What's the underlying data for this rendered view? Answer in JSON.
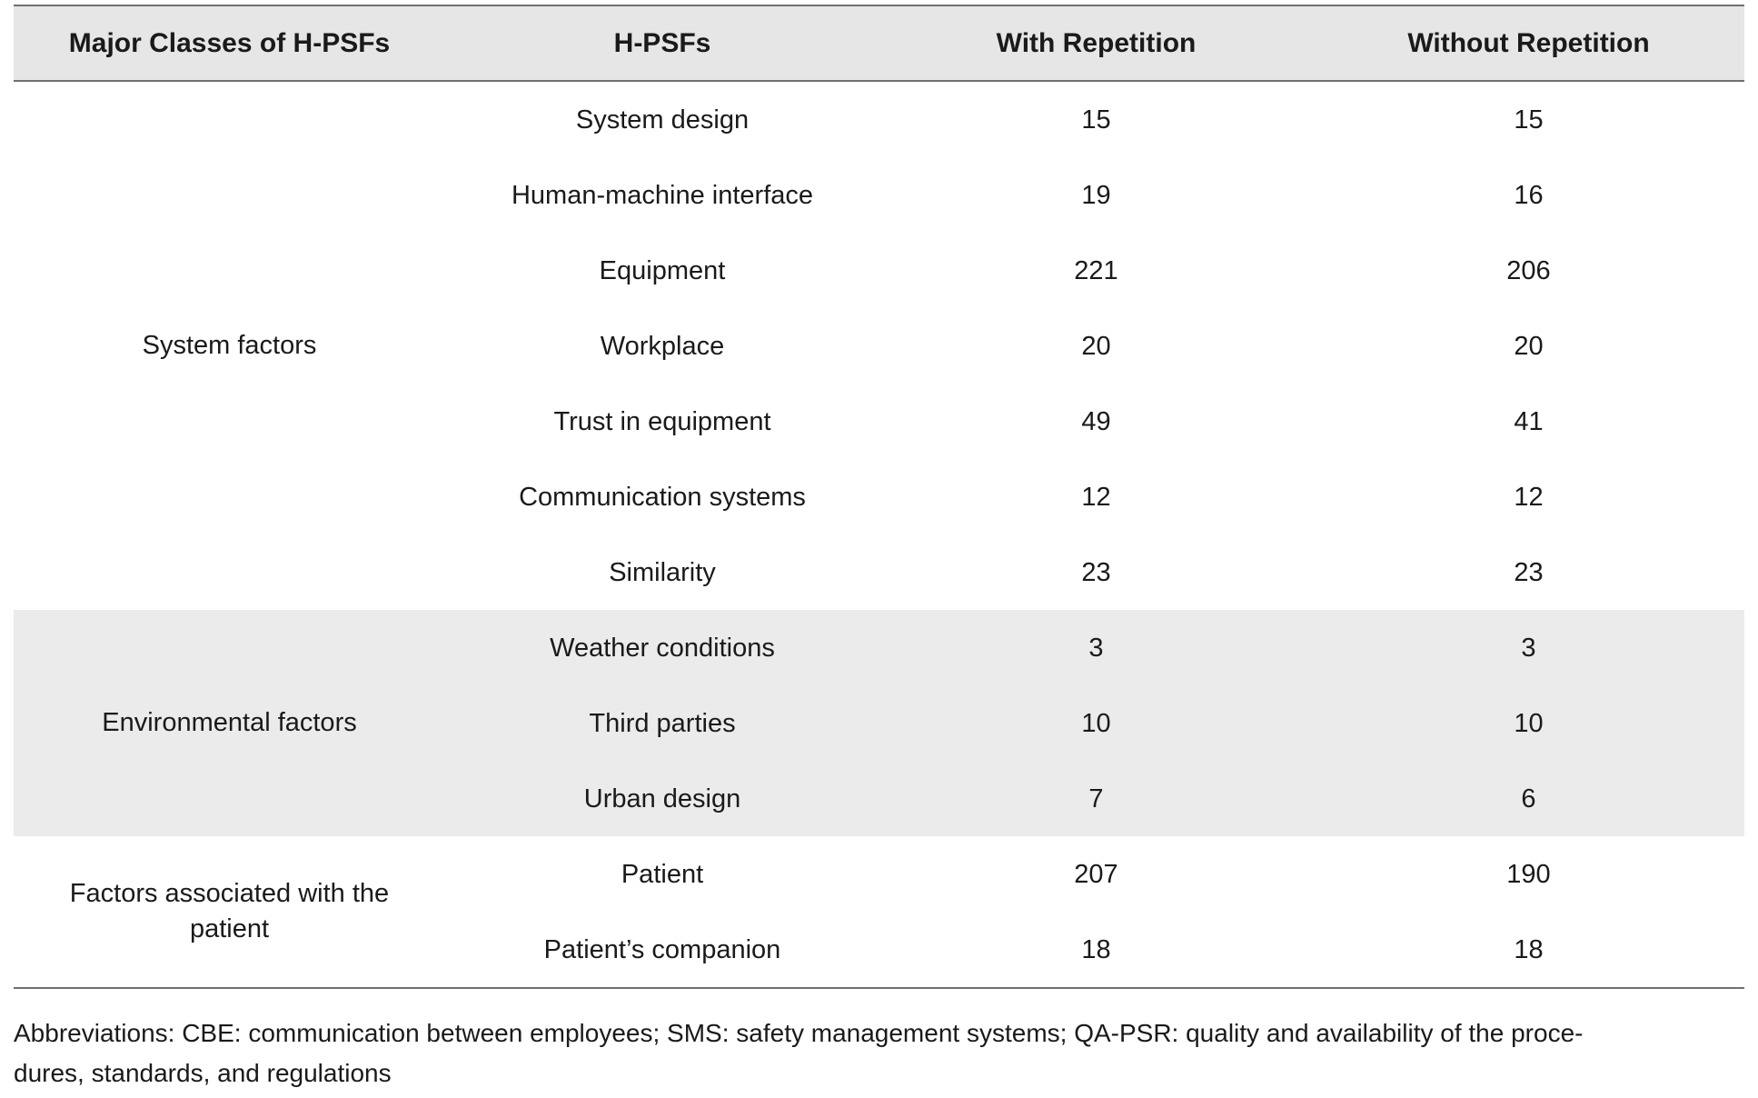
{
  "table": {
    "headers": [
      "Major Classes of H-PSFs",
      "H-PSFs",
      "With Repetition",
      "Without Repetition"
    ],
    "groups": [
      {
        "class": "System factors",
        "rows": [
          {
            "psf": "System design",
            "with": "15",
            "without": "15"
          },
          {
            "psf": "Human-machine interface",
            "with": "19",
            "without": "16"
          },
          {
            "psf": "Equipment",
            "with": "221",
            "without": "206"
          },
          {
            "psf": "Workplace",
            "with": "20",
            "without": "20"
          },
          {
            "psf": "Trust in equipment",
            "with": "49",
            "without": "41"
          },
          {
            "psf": "Communication systems",
            "with": "12",
            "without": "12"
          },
          {
            "psf": "Similarity",
            "with": "23",
            "without": "23"
          }
        ]
      },
      {
        "class": "Environmental factors",
        "rows": [
          {
            "psf": "Weather conditions",
            "with": "3",
            "without": "3"
          },
          {
            "psf": "Third parties",
            "with": "10",
            "without": "10"
          },
          {
            "psf": "Urban design",
            "with": "7",
            "without": "6"
          }
        ]
      },
      {
        "class_lines": [
          "Factors associated with the",
          "patient"
        ],
        "rows": [
          {
            "psf": "Patient",
            "with": "207",
            "without": "190"
          },
          {
            "psf": "Patient’s companion",
            "with": "18",
            "without": "18"
          }
        ]
      }
    ]
  },
  "footnote": {
    "line1": "Abbreviations: CBE: communication between employees; SMS: safety management systems; QA-PSR: quality and availability of the proce-",
    "line2": "dures, standards, and regulations"
  }
}
